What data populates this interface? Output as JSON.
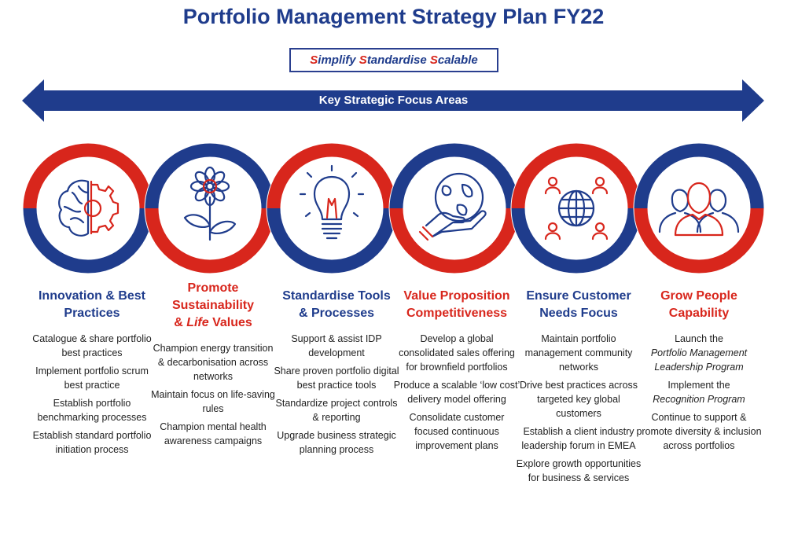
{
  "title": "Portfolio Management Strategy Plan FY22",
  "tagline": {
    "words": [
      {
        "cap": "S",
        "rest": "implify"
      },
      {
        "cap": "S",
        "rest": "tandardise"
      },
      {
        "cap": "S",
        "rest": "calable"
      }
    ]
  },
  "focus_banner": "Key Strategic Focus Areas",
  "colors": {
    "navy": "#1f3c8c",
    "red": "#d8261c"
  },
  "areas": [
    {
      "icon": "brain-gear-icon",
      "heading_lines": [
        "Innovation & Best",
        "Practices"
      ],
      "heading_color": "blue",
      "items": [
        "Catalogue & share portfolio best practices",
        "Implement portfolio scrum best practice",
        "Establish portfolio benchmarking processes",
        "Establish standard portfolio initiation process"
      ]
    },
    {
      "icon": "flower-icon",
      "heading_lines": [
        "Promote",
        "Sustainability"
      ],
      "heading_prefix": "& ",
      "heading_italic": "Life",
      "heading_suffix": " Values",
      "heading_color": "red",
      "items": [
        "Champion energy transition & decarbonisation across networks",
        "Maintain focus on life-saving rules",
        "Champion mental health awareness campaigns"
      ]
    },
    {
      "icon": "lightbulb-icon",
      "heading_lines": [
        "Standardise Tools",
        "& Processes"
      ],
      "heading_color": "blue",
      "items": [
        "Support & assist IDP development",
        "Share proven portfolio digital best practice tools",
        "Standardize project controls & reporting",
        "Upgrade business strategic planning process"
      ]
    },
    {
      "icon": "globe-hand-icon",
      "heading_lines": [
        "Value Proposition",
        "Competitiveness"
      ],
      "heading_color": "red",
      "items": [
        "Develop a global consolidated sales offering for brownfield portfolios",
        "Produce a scalable ‘low cost’ delivery model offering",
        "Consolidate customer focused continuous improvement plans"
      ]
    },
    {
      "icon": "globe-people-icon",
      "heading_lines": [
        "Ensure Customer",
        "Needs Focus"
      ],
      "heading_color": "blue",
      "items": [
        "Maintain portfolio management community networks",
        "Drive best practices across targeted key global customers",
        "Establish a client industry leadership forum in EMEA",
        "Explore growth opportunities for business & services"
      ]
    },
    {
      "icon": "people-group-icon",
      "heading_lines": [
        "Grow People",
        "Capability"
      ],
      "heading_color": "red",
      "items_rich": [
        {
          "plain": "Launch the",
          "italic": "Portfolio Management Leadership Program"
        },
        {
          "plain": "Implement the",
          "italic": "Recognition Program"
        },
        {
          "plain": "Continue to support & promote diversity & inclusion across portfolios",
          "italic": ""
        }
      ]
    }
  ]
}
